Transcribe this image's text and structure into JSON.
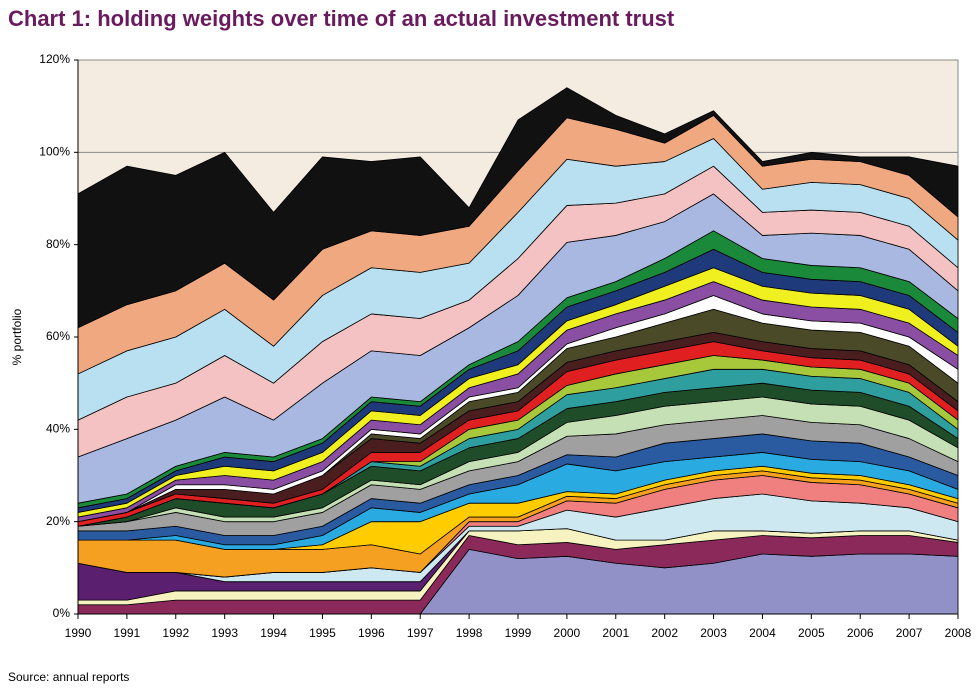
{
  "chart_data": {
    "type": "stacked_area",
    "title": "Chart 1: holding weights over time of an actual investment trust",
    "ylabel": "% portfolio",
    "source": "Source: annual reports",
    "categories": [
      "1990",
      "1991",
      "1992",
      "1993",
      "1994",
      "1995",
      "1996",
      "1997",
      "1998",
      "1999",
      "2000",
      "2001",
      "2002",
      "2003",
      "2004",
      "2005",
      "2006",
      "2007",
      "2008"
    ],
    "ylim": [
      0,
      120
    ],
    "yticks": [
      {
        "value": 0,
        "label": "0%"
      },
      {
        "value": 20,
        "label": "20%"
      },
      {
        "value": 40,
        "label": "40%"
      },
      {
        "value": 60,
        "label": "60%"
      },
      {
        "value": 80,
        "label": "80%"
      },
      {
        "value": 100,
        "label": "100%"
      },
      {
        "value": 120,
        "label": "120%"
      }
    ],
    "grid": true,
    "background": "#f4ece0",
    "series": [
      {
        "color": "#9191c8",
        "values": [
          0,
          0,
          0,
          0,
          0,
          0,
          0,
          0,
          14,
          12,
          12.5,
          11,
          10,
          11,
          13,
          12.5,
          13,
          13,
          12.5
        ]
      },
      {
        "color": "#8b2a5a",
        "values": [
          2,
          2,
          3,
          3,
          3,
          3,
          3,
          3,
          3,
          3,
          3,
          3,
          5,
          5,
          4,
          4,
          4,
          4,
          3
        ]
      },
      {
        "color": "#f7f3c0",
        "values": [
          1,
          1,
          2,
          2,
          2,
          2,
          2,
          2,
          1,
          3,
          3,
          2,
          1,
          2,
          1,
          1,
          1,
          1,
          0.5
        ]
      },
      {
        "color": "#5a1f6e",
        "values": [
          8,
          6,
          4,
          2,
          2,
          2,
          2,
          2,
          0,
          0,
          0,
          0,
          0,
          0,
          0,
          0,
          0,
          0,
          0
        ]
      },
      {
        "color": "#cde8f0",
        "values": [
          0,
          0,
          0,
          1,
          2,
          2,
          3,
          2,
          1,
          1,
          4,
          5,
          7,
          7,
          8,
          7,
          6,
          5,
          4
        ]
      },
      {
        "color": "#f08080",
        "values": [
          0,
          0,
          0,
          0,
          0,
          0,
          0,
          0,
          1,
          1,
          2,
          3,
          4,
          4,
          4,
          4,
          4,
          3,
          3
        ]
      },
      {
        "color": "#f5a020",
        "values": [
          5,
          7,
          7,
          6,
          5,
          5,
          5,
          4,
          1,
          1,
          1,
          1,
          1,
          1,
          1,
          1,
          1,
          1,
          1
        ]
      },
      {
        "color": "#ffcc00",
        "values": [
          0,
          0,
          0,
          0,
          0,
          1,
          5,
          7,
          3,
          3,
          1,
          1,
          1,
          1,
          1,
          1,
          1,
          1,
          1
        ]
      },
      {
        "color": "#29abe2",
        "values": [
          0,
          0,
          1,
          1,
          1,
          2,
          3,
          2,
          2,
          4,
          6,
          5,
          4,
          3,
          3,
          3,
          3,
          3,
          2
        ]
      },
      {
        "color": "#2a5aa0",
        "values": [
          2,
          2,
          2,
          2,
          2,
          2,
          2,
          2,
          2,
          2,
          2,
          3,
          4,
          4,
          4,
          4,
          4,
          3,
          3
        ]
      },
      {
        "color": "#a0a0a0",
        "values": [
          1,
          2,
          3,
          3,
          3,
          3,
          3,
          3,
          3,
          3,
          4,
          5,
          4,
          4,
          4,
          4,
          4,
          4,
          3
        ]
      },
      {
        "color": "#c5e0b4",
        "values": [
          0,
          0,
          1,
          1,
          1,
          1,
          1,
          1,
          2,
          2,
          3,
          4,
          4,
          4,
          4,
          4,
          4,
          4,
          3
        ]
      },
      {
        "color": "#1f4d2a",
        "values": [
          0,
          1,
          2,
          3,
          2,
          3,
          3,
          3,
          3,
          3,
          3,
          3,
          3,
          3,
          3,
          3,
          3,
          3,
          2
        ]
      },
      {
        "color": "#2f9e9e",
        "values": [
          0,
          0,
          0,
          0,
          0,
          0,
          1,
          1,
          2,
          2,
          3,
          3,
          3,
          4,
          3,
          3,
          3,
          3,
          2
        ]
      },
      {
        "color": "#a8c83c",
        "values": [
          0,
          0,
          0,
          0,
          0,
          0,
          0,
          1,
          2,
          2,
          2,
          3,
          3,
          3,
          2,
          2,
          2,
          2,
          2
        ]
      },
      {
        "color": "#e02020",
        "values": [
          1,
          1,
          1,
          1,
          1,
          1,
          2,
          2,
          2,
          2,
          3,
          3,
          3,
          3,
          2,
          2,
          2,
          2,
          2
        ]
      },
      {
        "color": "#4a1e1e",
        "values": [
          0,
          0,
          1,
          2,
          2,
          3,
          3,
          2,
          2,
          2,
          2,
          2,
          2,
          2,
          2,
          2,
          2,
          2,
          2
        ]
      },
      {
        "color": "#4a4a28",
        "values": [
          0,
          0,
          0,
          0,
          0,
          0,
          1,
          1,
          2,
          2,
          3,
          3,
          4,
          5,
          4,
          4,
          4,
          4,
          4
        ]
      },
      {
        "color": "#ffffff",
        "values": [
          0,
          0,
          1,
          1,
          1,
          1,
          1,
          1,
          1,
          1,
          1,
          2,
          2,
          3,
          2,
          2,
          2,
          2,
          3
        ]
      },
      {
        "color": "#8a4fa3",
        "values": [
          1,
          1,
          1,
          2,
          2,
          2,
          2,
          2,
          2,
          3,
          3,
          3,
          3,
          3,
          3,
          3,
          3,
          3,
          3
        ]
      },
      {
        "color": "#f0f020",
        "values": [
          1,
          1,
          1,
          2,
          2,
          2,
          2,
          2,
          2,
          2,
          2,
          2,
          3,
          3,
          3,
          3,
          3,
          3,
          2
        ]
      },
      {
        "color": "#1f3a7a",
        "values": [
          1,
          1,
          1,
          2,
          2,
          2,
          2,
          2,
          2,
          3,
          3,
          3,
          3,
          4,
          3,
          3,
          3,
          3,
          3
        ]
      },
      {
        "color": "#1a8a3a",
        "values": [
          1,
          1,
          1,
          1,
          1,
          1,
          1,
          1,
          1,
          2,
          2,
          2,
          3,
          4,
          3,
          3,
          3,
          3,
          3
        ]
      },
      {
        "color": "#a8b8e0",
        "values": [
          10,
          12,
          10,
          12,
          8,
          12,
          10,
          10,
          8,
          10,
          12,
          10,
          8,
          8,
          5,
          7,
          7,
          7,
          6
        ]
      },
      {
        "color": "#f4c2c2",
        "values": [
          8,
          9,
          8,
          9,
          8,
          9,
          8,
          8,
          6,
          8,
          8,
          7,
          6,
          6,
          5,
          5,
          5,
          5,
          5
        ]
      },
      {
        "color": "#b8e0f0",
        "values": [
          10,
          10,
          10,
          10,
          8,
          10,
          10,
          10,
          8,
          10,
          10,
          8,
          7,
          6,
          5,
          6,
          6,
          6,
          6
        ]
      },
      {
        "color": "#f0a880",
        "values": [
          10,
          10,
          10,
          10,
          10,
          10,
          8,
          8,
          8,
          9,
          9,
          8,
          4,
          5,
          5,
          5,
          5,
          5,
          5
        ]
      },
      {
        "color": "#111111",
        "values": [
          29,
          30,
          25,
          24,
          19,
          20,
          15,
          17,
          4,
          11,
          6.5,
          3,
          2,
          1,
          1,
          1.5,
          1,
          4,
          11
        ]
      }
    ]
  }
}
